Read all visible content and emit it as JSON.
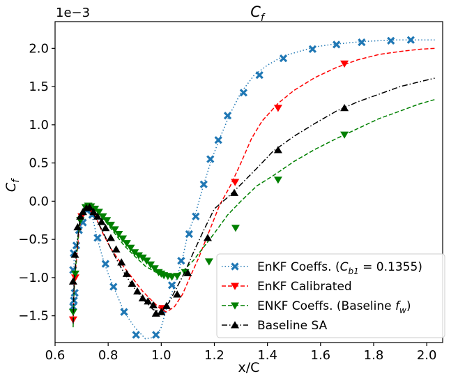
{
  "chart_data": {
    "type": "line",
    "title": "C_f",
    "title_main": "C",
    "title_sub": "f",
    "offset_label": "1e−3",
    "xlabel": "x/C",
    "ylabel_main": "C",
    "ylabel_sub": "f",
    "xlim": [
      0.6,
      2.06
    ],
    "ylim": [
      -1.85,
      2.35
    ],
    "x_ticks": [
      0.6,
      0.8,
      1.0,
      1.2,
      1.4,
      1.6,
      1.8,
      2.0
    ],
    "x_tick_labels": [
      "0.6",
      "0.8",
      "1.0",
      "1.2",
      "1.4",
      "1.6",
      "1.8",
      "2.0"
    ],
    "y_ticks": [
      -1.5,
      -1.0,
      -0.5,
      0.0,
      0.5,
      1.0,
      1.5,
      2.0
    ],
    "y_tick_labels": [
      "−1.5",
      "−1.0",
      "−0.5",
      "0.0",
      "0.5",
      "1.0",
      "1.5",
      "2.0"
    ],
    "grid": false,
    "legend_position": "lower-right",
    "series": [
      {
        "name": "EnKF Coeffs. (C_b1 = 0.1355)",
        "legend_parts": [
          "EnKF Coeffs. (",
          "C",
          "b1",
          " = 0.1355)"
        ],
        "color": "#1f77b4",
        "line_style": "dotted",
        "marker": "x-cross",
        "x": [
          0.668,
          0.672,
          0.68,
          0.69,
          0.7,
          0.72,
          0.74,
          0.76,
          0.78,
          0.8,
          0.83,
          0.86,
          0.9,
          0.94,
          0.98,
          1.0,
          1.02,
          1.05,
          1.08,
          1.1,
          1.13,
          1.16,
          1.19,
          1.22,
          1.26,
          1.3,
          1.35,
          1.4,
          1.46,
          1.52,
          1.58,
          1.64,
          1.7,
          1.76,
          1.82,
          1.88,
          1.94,
          2.0,
          2.03
        ],
        "y": [
          -1.4,
          -0.7,
          -0.55,
          -0.4,
          -0.3,
          -0.1,
          -0.2,
          -0.5,
          -0.75,
          -0.95,
          -1.2,
          -1.45,
          -1.65,
          -1.8,
          -1.78,
          -1.65,
          -1.4,
          -1.1,
          -0.75,
          -0.43,
          -0.15,
          0.22,
          0.55,
          0.82,
          1.15,
          1.42,
          1.65,
          1.78,
          1.9,
          1.96,
          2.02,
          2.05,
          2.07,
          2.09,
          2.1,
          2.11,
          2.11,
          2.11,
          2.11
        ],
        "markers": [
          {
            "x": 0.668,
            "y": -1.38
          },
          {
            "x": 0.671,
            "y": -1.3
          },
          {
            "x": 0.674,
            "y": -1.2
          },
          {
            "x": 0.668,
            "y": -0.9
          },
          {
            "x": 0.67,
            "y": -0.68
          },
          {
            "x": 0.68,
            "y": -0.58
          },
          {
            "x": 0.69,
            "y": -0.38
          },
          {
            "x": 0.705,
            "y": -0.28
          },
          {
            "x": 0.72,
            "y": -0.12
          },
          {
            "x": 0.74,
            "y": -0.18
          },
          {
            "x": 0.76,
            "y": -0.48
          },
          {
            "x": 0.79,
            "y": -0.82
          },
          {
            "x": 0.82,
            "y": -1.12
          },
          {
            "x": 0.86,
            "y": -1.45
          },
          {
            "x": 0.905,
            "y": -1.75
          },
          {
            "x": 0.98,
            "y": -1.75
          },
          {
            "x": 1.005,
            "y": -1.42
          },
          {
            "x": 1.04,
            "y": -1.1
          },
          {
            "x": 1.075,
            "y": -0.78
          },
          {
            "x": 1.105,
            "y": -0.43
          },
          {
            "x": 1.13,
            "y": -0.2
          },
          {
            "x": 1.16,
            "y": 0.22
          },
          {
            "x": 1.185,
            "y": 0.55
          },
          {
            "x": 1.215,
            "y": 0.8
          },
          {
            "x": 1.25,
            "y": 1.12
          },
          {
            "x": 1.31,
            "y": 1.42
          },
          {
            "x": 1.37,
            "y": 1.65
          },
          {
            "x": 1.46,
            "y": 1.87
          },
          {
            "x": 1.57,
            "y": 1.99
          },
          {
            "x": 1.66,
            "y": 2.05
          },
          {
            "x": 1.755,
            "y": 2.08
          },
          {
            "x": 1.865,
            "y": 2.1
          },
          {
            "x": 1.94,
            "y": 2.11
          }
        ]
      },
      {
        "name": "EnKF Calibrated",
        "color": "#ff0000",
        "line_style": "dashed",
        "marker": "triangle-down",
        "x": [
          0.668,
          0.672,
          0.68,
          0.69,
          0.7,
          0.715,
          0.73,
          0.75,
          0.78,
          0.81,
          0.85,
          0.89,
          0.93,
          0.97,
          1.0,
          1.02,
          1.05,
          1.08,
          1.11,
          1.14,
          1.18,
          1.22,
          1.26,
          1.3,
          1.34,
          1.38,
          1.44,
          1.5,
          1.58,
          1.66,
          1.74,
          1.82,
          1.9,
          1.98,
          2.03
        ],
        "y": [
          -1.55,
          -1.1,
          -0.8,
          -0.4,
          -0.18,
          -0.08,
          -0.1,
          -0.18,
          -0.42,
          -0.62,
          -0.82,
          -1.0,
          -1.18,
          -1.32,
          -1.42,
          -1.45,
          -1.38,
          -1.22,
          -0.98,
          -0.75,
          -0.4,
          -0.05,
          0.2,
          0.5,
          0.82,
          1.05,
          1.28,
          1.45,
          1.62,
          1.75,
          1.85,
          1.92,
          1.96,
          1.99,
          2.0
        ],
        "markers": [
          {
            "x": 0.668,
            "y": -1.55
          },
          {
            "x": 0.676,
            "y": -1.0
          },
          {
            "x": 0.7,
            "y": -0.2
          },
          {
            "x": 0.735,
            "y": -0.1
          },
          {
            "x": 1.005,
            "y": -1.4
          },
          {
            "x": 1.278,
            "y": 0.25
          },
          {
            "x": 1.44,
            "y": 1.22
          },
          {
            "x": 1.69,
            "y": 1.8
          }
        ]
      },
      {
        "name": "ENKF Coeffs. (Baseline f_w)",
        "legend_parts": [
          "ENKF Coeffs. (Baseline ",
          "f",
          "w",
          ")"
        ],
        "color": "#008000",
        "line_style": "dashed",
        "marker": "triangle-down",
        "x": [
          0.668,
          0.672,
          0.68,
          0.69,
          0.7,
          0.715,
          0.73,
          0.75,
          0.78,
          0.82,
          0.86,
          0.9,
          0.94,
          0.98,
          1.01,
          1.04,
          1.08,
          1.12,
          1.16,
          1.2,
          1.25,
          1.3,
          1.36,
          1.42,
          1.5,
          1.58,
          1.66,
          1.74,
          1.82,
          1.9,
          1.97,
          2.03
        ],
        "y": [
          -1.65,
          -1.15,
          -0.75,
          -0.35,
          -0.15,
          -0.05,
          -0.06,
          -0.1,
          -0.22,
          -0.4,
          -0.58,
          -0.72,
          -0.85,
          -0.93,
          -0.97,
          -0.98,
          -0.92,
          -0.78,
          -0.6,
          -0.42,
          -0.18,
          0.0,
          0.2,
          0.33,
          0.52,
          0.68,
          0.82,
          0.95,
          1.08,
          1.18,
          1.27,
          1.33
        ],
        "markers": [
          {
            "x": 0.668,
            "y": -1.45
          },
          {
            "x": 0.676,
            "y": -0.95
          },
          {
            "x": 0.695,
            "y": -0.25
          },
          {
            "x": 0.715,
            "y": -0.08
          },
          {
            "x": 0.725,
            "y": -0.06
          },
          {
            "x": 0.735,
            "y": -0.07
          },
          {
            "x": 0.75,
            "y": -0.1
          },
          {
            "x": 0.765,
            "y": -0.14
          },
          {
            "x": 0.78,
            "y": -0.2
          },
          {
            "x": 0.795,
            "y": -0.25
          },
          {
            "x": 0.81,
            "y": -0.31
          },
          {
            "x": 0.825,
            "y": -0.37
          },
          {
            "x": 0.84,
            "y": -0.43
          },
          {
            "x": 0.855,
            "y": -0.49
          },
          {
            "x": 0.87,
            "y": -0.55
          },
          {
            "x": 0.885,
            "y": -0.61
          },
          {
            "x": 0.9,
            "y": -0.67
          },
          {
            "x": 0.915,
            "y": -0.71
          },
          {
            "x": 0.93,
            "y": -0.74
          },
          {
            "x": 0.945,
            "y": -0.78
          },
          {
            "x": 0.96,
            "y": -0.83
          },
          {
            "x": 0.975,
            "y": -0.88
          },
          {
            "x": 0.99,
            "y": -0.93
          },
          {
            "x": 1.0,
            "y": -0.95
          },
          {
            "x": 1.01,
            "y": -0.97
          },
          {
            "x": 1.025,
            "y": -0.98
          },
          {
            "x": 1.04,
            "y": -0.99
          },
          {
            "x": 1.06,
            "y": -0.98
          },
          {
            "x": 1.09,
            "y": -0.93
          },
          {
            "x": 1.18,
            "y": -0.79
          },
          {
            "x": 1.28,
            "y": -0.35
          },
          {
            "x": 1.44,
            "y": 0.28
          },
          {
            "x": 1.69,
            "y": 0.87
          }
        ]
      },
      {
        "name": "Baseline SA",
        "color": "#000000",
        "line_style": "dashdot",
        "marker": "triangle-up",
        "x": [
          0.668,
          0.672,
          0.68,
          0.69,
          0.7,
          0.715,
          0.73,
          0.75,
          0.78,
          0.81,
          0.85,
          0.89,
          0.93,
          0.97,
          1.0,
          1.03,
          1.06,
          1.09,
          1.12,
          1.16,
          1.2,
          1.25,
          1.3,
          1.36,
          1.42,
          1.5,
          1.58,
          1.66,
          1.74,
          1.82,
          1.9,
          1.97,
          2.03
        ],
        "y": [
          -1.6,
          -1.05,
          -0.7,
          -0.32,
          -0.15,
          -0.08,
          -0.1,
          -0.2,
          -0.4,
          -0.62,
          -0.88,
          -1.1,
          -1.28,
          -1.42,
          -1.45,
          -1.32,
          -1.12,
          -0.92,
          -0.68,
          -0.38,
          -0.1,
          0.05,
          0.22,
          0.43,
          0.65,
          0.85,
          1.02,
          1.18,
          1.3,
          1.4,
          1.5,
          1.56,
          1.61
        ],
        "markers": [
          {
            "x": 0.668,
            "y": -1.05
          },
          {
            "x": 0.675,
            "y": -0.7
          },
          {
            "x": 0.685,
            "y": -0.34
          },
          {
            "x": 0.695,
            "y": -0.2
          },
          {
            "x": 0.705,
            "y": -0.14
          },
          {
            "x": 0.718,
            "y": -0.09
          },
          {
            "x": 0.73,
            "y": -0.08
          },
          {
            "x": 0.745,
            "y": -0.14
          },
          {
            "x": 0.76,
            "y": -0.2
          },
          {
            "x": 0.775,
            "y": -0.27
          },
          {
            "x": 0.79,
            "y": -0.35
          },
          {
            "x": 0.81,
            "y": -0.48
          },
          {
            "x": 0.83,
            "y": -0.63
          },
          {
            "x": 0.85,
            "y": -0.8
          },
          {
            "x": 0.87,
            "y": -0.95
          },
          {
            "x": 0.89,
            "y": -1.08
          },
          {
            "x": 0.91,
            "y": -1.18
          },
          {
            "x": 0.93,
            "y": -1.27
          },
          {
            "x": 0.95,
            "y": -1.31
          },
          {
            "x": 0.97,
            "y": -1.36
          },
          {
            "x": 0.98,
            "y": -1.47
          },
          {
            "x": 1.0,
            "y": -1.45
          },
          {
            "x": 1.02,
            "y": -1.37
          },
          {
            "x": 1.06,
            "y": -1.22
          },
          {
            "x": 1.1,
            "y": -0.94
          },
          {
            "x": 1.175,
            "y": -0.48
          },
          {
            "x": 1.275,
            "y": 0.11
          },
          {
            "x": 1.44,
            "y": 0.67
          },
          {
            "x": 1.69,
            "y": 1.22
          }
        ]
      }
    ]
  }
}
